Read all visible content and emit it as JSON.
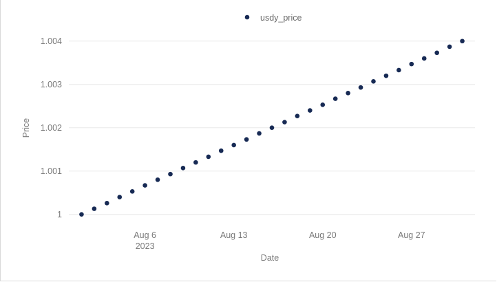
{
  "chart_data": {
    "type": "scatter",
    "xlabel": "Date",
    "ylabel": "Price",
    "legend_position": "top-center",
    "grid": true,
    "color": "#172a54",
    "series": [
      {
        "name": "usdy_price",
        "x": [
          "2023-08-01",
          "2023-08-02",
          "2023-08-03",
          "2023-08-04",
          "2023-08-05",
          "2023-08-06",
          "2023-08-07",
          "2023-08-08",
          "2023-08-09",
          "2023-08-10",
          "2023-08-11",
          "2023-08-12",
          "2023-08-13",
          "2023-08-14",
          "2023-08-15",
          "2023-08-16",
          "2023-08-17",
          "2023-08-18",
          "2023-08-19",
          "2023-08-20",
          "2023-08-21",
          "2023-08-22",
          "2023-08-23",
          "2023-08-24",
          "2023-08-25",
          "2023-08-26",
          "2023-08-27",
          "2023-08-28",
          "2023-08-29",
          "2023-08-30",
          "2023-08-31"
        ],
        "y": [
          1.0,
          1.00013,
          1.00026,
          1.0004,
          1.00053,
          1.00067,
          1.0008,
          1.00093,
          1.00107,
          1.0012,
          1.00133,
          1.00147,
          1.0016,
          1.00173,
          1.00187,
          1.002,
          1.00213,
          1.00227,
          1.0024,
          1.00253,
          1.00267,
          1.0028,
          1.00293,
          1.00307,
          1.0032,
          1.00333,
          1.00347,
          1.0036,
          1.00373,
          1.00387,
          1.004
        ]
      }
    ],
    "ylim": [
      0.9999,
      1.00425
    ],
    "xlim": [
      "2023-07-31",
      "2023-09-01"
    ],
    "y_ticks": [
      {
        "value": 1.0,
        "label": "1"
      },
      {
        "value": 1.001,
        "label": "1.001"
      },
      {
        "value": 1.002,
        "label": "1.002"
      },
      {
        "value": 1.003,
        "label": "1.003"
      },
      {
        "value": 1.004,
        "label": "1.004"
      }
    ],
    "x_ticks": [
      {
        "value": "2023-08-06",
        "label": "Aug 6",
        "sublabel": "2023"
      },
      {
        "value": "2023-08-13",
        "label": "Aug 13",
        "sublabel": ""
      },
      {
        "value": "2023-08-20",
        "label": "Aug 20",
        "sublabel": ""
      },
      {
        "value": "2023-08-27",
        "label": "Aug 27",
        "sublabel": ""
      }
    ]
  }
}
